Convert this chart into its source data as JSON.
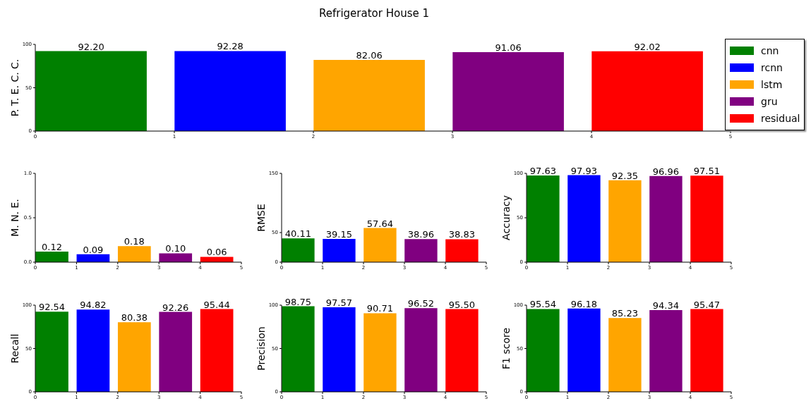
{
  "chart_data": [
    {
      "type": "bar",
      "title": "Refrigerator House 1",
      "ylabel": "P. T. E. C. C.",
      "xlim": [
        0,
        5
      ],
      "xticks": [
        0,
        1,
        2,
        3,
        4,
        5
      ],
      "ylim": [
        0,
        100
      ],
      "yticks": [
        0,
        50,
        100
      ],
      "legend": "right",
      "series": [
        {
          "name": "cnn",
          "color": "#008000",
          "x": [
            0.4
          ],
          "values": [
            92.2
          ],
          "value_labels": [
            "92.20"
          ]
        },
        {
          "name": "rcnn",
          "color": "#0000ff",
          "x": [
            1.4
          ],
          "values": [
            92.28
          ],
          "value_labels": [
            "92.28"
          ]
        },
        {
          "name": "lstm",
          "color": "#ffa500",
          "x": [
            2.4
          ],
          "values": [
            82.06
          ],
          "value_labels": [
            "82.06"
          ]
        },
        {
          "name": "gru",
          "color": "#800080",
          "x": [
            3.4
          ],
          "values": [
            91.06
          ],
          "value_labels": [
            "91.06"
          ]
        },
        {
          "name": "residual",
          "color": "#ff0000",
          "x": [
            4.4
          ],
          "values": [
            92.02
          ],
          "value_labels": [
            "92.02"
          ]
        }
      ]
    },
    {
      "type": "bar",
      "ylabel": "M. N. E.",
      "xlim": [
        0,
        5
      ],
      "xticks": [
        0,
        1,
        2,
        3,
        4,
        5
      ],
      "ylim": [
        0,
        1
      ],
      "yticks": [
        {
          "value": 0,
          "label": "0.0"
        },
        {
          "value": 0.5,
          "label": "0.5"
        },
        {
          "value": 1,
          "label": "1.0"
        }
      ],
      "series": [
        {
          "color": "#008000",
          "x": [
            0.4
          ],
          "values": [
            0.12
          ],
          "value_labels": [
            "0.12"
          ]
        },
        {
          "color": "#0000ff",
          "x": [
            1.4
          ],
          "values": [
            0.09
          ],
          "value_labels": [
            "0.09"
          ]
        },
        {
          "color": "#ffa500",
          "x": [
            2.4
          ],
          "values": [
            0.18
          ],
          "value_labels": [
            "0.18"
          ]
        },
        {
          "color": "#800080",
          "x": [
            3.4
          ],
          "values": [
            0.1
          ],
          "value_labels": [
            "0.10"
          ]
        },
        {
          "color": "#ff0000",
          "x": [
            4.4
          ],
          "values": [
            0.06
          ],
          "value_labels": [
            "0.06"
          ]
        }
      ]
    },
    {
      "type": "bar",
      "ylabel": "RMSE",
      "xlim": [
        0,
        5
      ],
      "xticks": [
        0,
        1,
        2,
        3,
        4,
        5
      ],
      "ylim": [
        0,
        150
      ],
      "yticks": [
        0,
        50,
        150
      ],
      "series": [
        {
          "color": "#008000",
          "x": [
            0.4
          ],
          "values": [
            40.11
          ],
          "value_labels": [
            "40.11"
          ]
        },
        {
          "color": "#0000ff",
          "x": [
            1.4
          ],
          "values": [
            39.15
          ],
          "value_labels": [
            "39.15"
          ]
        },
        {
          "color": "#ffa500",
          "x": [
            2.4
          ],
          "values": [
            57.64
          ],
          "value_labels": [
            "57.64"
          ]
        },
        {
          "color": "#800080",
          "x": [
            3.4
          ],
          "values": [
            38.96
          ],
          "value_labels": [
            "38.96"
          ]
        },
        {
          "color": "#ff0000",
          "x": [
            4.4
          ],
          "values": [
            38.83
          ],
          "value_labels": [
            "38.83"
          ]
        }
      ]
    },
    {
      "type": "bar",
      "ylabel": "Accuracy",
      "xlim": [
        0,
        5
      ],
      "xticks": [
        0,
        1,
        2,
        3,
        4,
        5
      ],
      "ylim": [
        0,
        100
      ],
      "yticks": [
        0,
        50,
        100
      ],
      "series": [
        {
          "color": "#008000",
          "x": [
            0.4
          ],
          "values": [
            97.63
          ],
          "value_labels": [
            "97.63"
          ]
        },
        {
          "color": "#0000ff",
          "x": [
            1.4
          ],
          "values": [
            97.93
          ],
          "value_labels": [
            "97.93"
          ]
        },
        {
          "color": "#ffa500",
          "x": [
            2.4
          ],
          "values": [
            92.35
          ],
          "value_labels": [
            "92.35"
          ]
        },
        {
          "color": "#800080",
          "x": [
            3.4
          ],
          "values": [
            96.96
          ],
          "value_labels": [
            "96.96"
          ]
        },
        {
          "color": "#ff0000",
          "x": [
            4.4
          ],
          "values": [
            97.51
          ],
          "value_labels": [
            "97.51"
          ]
        }
      ]
    },
    {
      "type": "bar",
      "ylabel": "Recall",
      "xlim": [
        0,
        5
      ],
      "xticks": [
        0,
        1,
        2,
        3,
        4,
        5
      ],
      "ylim": [
        0,
        100
      ],
      "yticks": [
        0,
        50,
        100
      ],
      "series": [
        {
          "color": "#008000",
          "x": [
            0.4
          ],
          "values": [
            92.54
          ],
          "value_labels": [
            "92.54"
          ]
        },
        {
          "color": "#0000ff",
          "x": [
            1.4
          ],
          "values": [
            94.82
          ],
          "value_labels": [
            "94.82"
          ]
        },
        {
          "color": "#ffa500",
          "x": [
            2.4
          ],
          "values": [
            80.38
          ],
          "value_labels": [
            "80.38"
          ]
        },
        {
          "color": "#800080",
          "x": [
            3.4
          ],
          "values": [
            92.26
          ],
          "value_labels": [
            "92.26"
          ]
        },
        {
          "color": "#ff0000",
          "x": [
            4.4
          ],
          "values": [
            95.44
          ],
          "value_labels": [
            "95.44"
          ]
        }
      ]
    },
    {
      "type": "bar",
      "ylabel": "Precision",
      "xlim": [
        0,
        5
      ],
      "xticks": [
        0,
        1,
        2,
        3,
        4,
        5
      ],
      "ylim": [
        0,
        100
      ],
      "yticks": [
        0,
        50,
        100
      ],
      "series": [
        {
          "color": "#008000",
          "x": [
            0.4
          ],
          "values": [
            98.75
          ],
          "value_labels": [
            "98.75"
          ]
        },
        {
          "color": "#0000ff",
          "x": [
            1.4
          ],
          "values": [
            97.57
          ],
          "value_labels": [
            "97.57"
          ]
        },
        {
          "color": "#ffa500",
          "x": [
            2.4
          ],
          "values": [
            90.71
          ],
          "value_labels": [
            "90.71"
          ]
        },
        {
          "color": "#800080",
          "x": [
            3.4
          ],
          "values": [
            96.52
          ],
          "value_labels": [
            "96.52"
          ]
        },
        {
          "color": "#ff0000",
          "x": [
            4.4
          ],
          "values": [
            95.5
          ],
          "value_labels": [
            "95.50"
          ]
        }
      ]
    },
    {
      "type": "bar",
      "ylabel": "F1 score",
      "xlim": [
        0,
        5
      ],
      "xticks": [
        0,
        1,
        2,
        3,
        4,
        5
      ],
      "ylim": [
        0,
        100
      ],
      "yticks": [
        0,
        50,
        100
      ],
      "series": [
        {
          "color": "#008000",
          "x": [
            0.4
          ],
          "values": [
            95.54
          ],
          "value_labels": [
            "95.54"
          ]
        },
        {
          "color": "#0000ff",
          "x": [
            1.4
          ],
          "values": [
            96.18
          ],
          "value_labels": [
            "96.18"
          ]
        },
        {
          "color": "#ffa500",
          "x": [
            2.4
          ],
          "values": [
            85.23
          ],
          "value_labels": [
            "85.23"
          ]
        },
        {
          "color": "#800080",
          "x": [
            3.4
          ],
          "values": [
            94.34
          ],
          "value_labels": [
            "94.34"
          ]
        },
        {
          "color": "#ff0000",
          "x": [
            4.4
          ],
          "values": [
            95.47
          ],
          "value_labels": [
            "95.47"
          ]
        }
      ]
    }
  ]
}
